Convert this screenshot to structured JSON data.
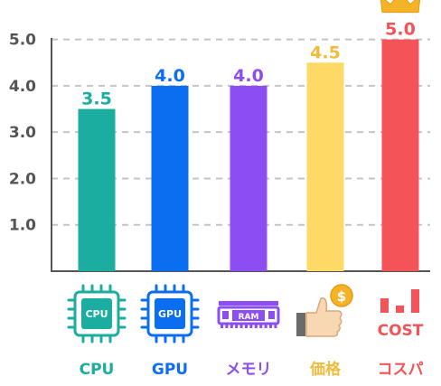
{
  "chart_data": {
    "type": "bar",
    "categories": [
      "CPU",
      "GPU",
      "メモリ",
      "価格",
      "コスパ"
    ],
    "values": [
      3.5,
      4.0,
      4.0,
      4.5,
      5.0
    ],
    "value_labels": [
      "3.5",
      "4.0",
      "4.0",
      "4.5",
      "5.0"
    ],
    "ylim": [
      0,
      5.5
    ],
    "y_ticks": [
      1.0,
      2.0,
      3.0,
      4.0,
      5.0
    ],
    "y_tick_labels": [
      "1.0",
      "2.0",
      "3.0",
      "4.0",
      "5.0"
    ],
    "grid": true,
    "colors": [
      "#1aada0",
      "#0b6ef0",
      "#8c4ef2",
      "#ffd966",
      "#f45358"
    ],
    "label_colors": [
      "#1aada0",
      "#0b6ef0",
      "#8c4ef2",
      "#f2bb3c",
      "#f45358"
    ],
    "icons": [
      {
        "name": "cpu-chip-icon",
        "text": "CPU"
      },
      {
        "name": "gpu-chip-icon",
        "text": "GPU"
      },
      {
        "name": "ram-module-icon",
        "text": "RAM"
      },
      {
        "name": "price-thumbs-up-coin-icon",
        "text": "$"
      },
      {
        "name": "cost-bar-icon",
        "text": "COST"
      }
    ],
    "highlight": {
      "category": "コスパ",
      "icon": "crown-icon"
    }
  }
}
